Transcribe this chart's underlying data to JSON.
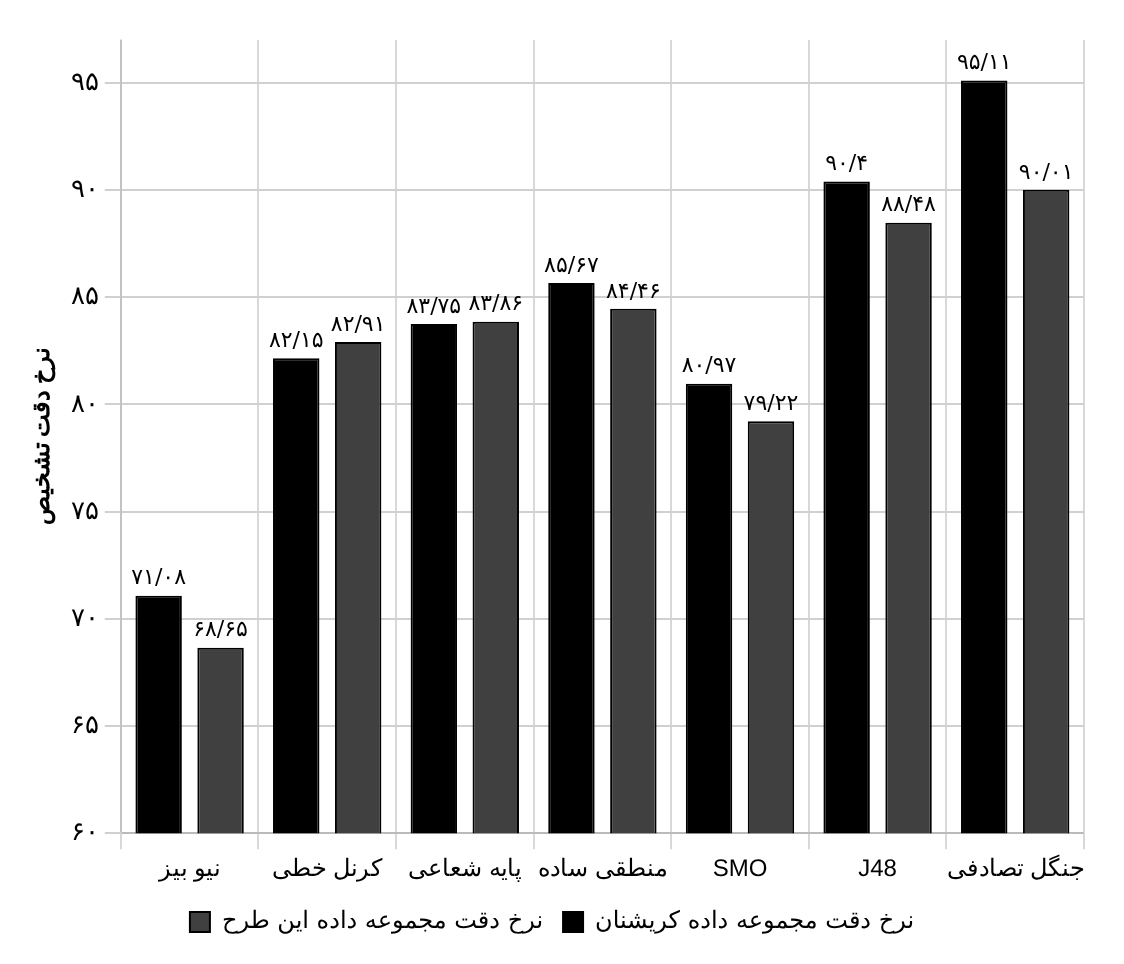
{
  "chart_data": {
    "type": "bar",
    "ylabel": "نرخ دقت تشخیص",
    "categories": [
      "نیو بیز",
      "کرنل خطی",
      "پایه شعاعی",
      "منطقی ساده",
      "SMO",
      "J48",
      "جنگل تصادفی"
    ],
    "series": [
      {
        "name": "نرخ دقت مجموعه داده کریشنان",
        "color": "#000000",
        "values": [
          71.08,
          82.15,
          83.75,
          85.67,
          80.97,
          90.4,
          95.11
        ],
        "value_labels": [
          "۷۱/۰۸",
          "۸۲/۱۵",
          "۸۳/۷۵",
          "۸۵/۶۷",
          "۸۰/۹۷",
          "۹۰/۴",
          "۹۵/۱۱"
        ]
      },
      {
        "name": "نرخ دقت مجموعه داده این طرح",
        "color": "#404040",
        "values": [
          68.65,
          82.91,
          83.86,
          84.46,
          79.22,
          88.48,
          90.01
        ],
        "value_labels": [
          "۶۸/۶۵",
          "۸۲/۹۱",
          "۸۳/۸۶",
          "۸۴/۴۶",
          "۷۹/۲۲",
          "۸۸/۴۸",
          "۹۰/۰۱"
        ]
      }
    ],
    "ylim": [
      60,
      97
    ],
    "yticks": [
      {
        "value": 60,
        "label": "۶۰"
      },
      {
        "value": 65,
        "label": "۶۵"
      },
      {
        "value": 70,
        "label": "۷۰"
      },
      {
        "value": 75,
        "label": "۷۵"
      },
      {
        "value": 80,
        "label": "۸۰"
      },
      {
        "value": 85,
        "label": "۸۵"
      },
      {
        "value": 90,
        "label": "۹۰"
      },
      {
        "value": 95,
        "label": "۹۵"
      }
    ],
    "grid": true,
    "legend": "bottom"
  }
}
